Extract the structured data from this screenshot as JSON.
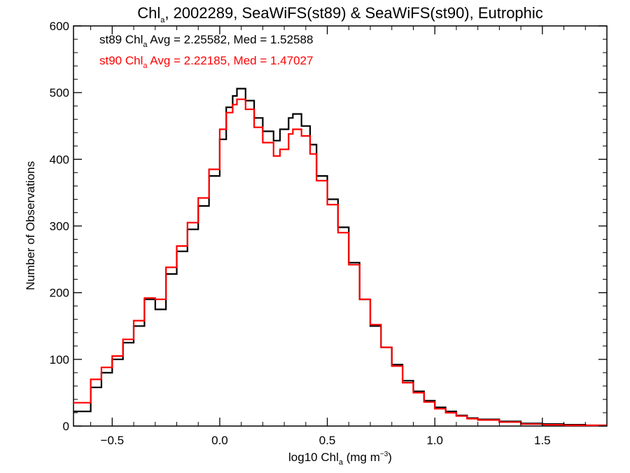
{
  "chart_data": {
    "type": "line",
    "step": true,
    "title": {
      "base": "Chl",
      "sub": "a",
      "rest": ", 2002289, SeaWiFS(st89) & SeaWiFS(st90), Eutrophic"
    },
    "xlabel": {
      "base": "log10 Chl",
      "sub": "a",
      "unit_pre": " (mg m",
      "sup": "−3",
      "unit_post": ")"
    },
    "ylabel": "Number of Observations",
    "xlim": [
      -0.68,
      1.8
    ],
    "ylim": [
      0,
      600
    ],
    "xticks": [
      -0.5,
      0.0,
      0.5,
      1.0,
      1.5
    ],
    "xtick_labels": [
      "−0.5",
      "0.0",
      "0.5",
      "1.0",
      "1.5"
    ],
    "yticks": [
      0,
      100,
      200,
      300,
      400,
      500,
      600
    ],
    "ytick_labels": [
      "0",
      "100",
      "200",
      "300",
      "400",
      "500",
      "600"
    ],
    "grid": false,
    "series": [
      {
        "name": "st89",
        "color": "#000000",
        "legend": {
          "pre": "st89 Chl",
          "sub": "a",
          "post": " Avg = 2.25582, Med = 1.52588"
        },
        "points": [
          [
            -0.68,
            22
          ],
          [
            -0.6,
            58
          ],
          [
            -0.55,
            80
          ],
          [
            -0.5,
            100
          ],
          [
            -0.45,
            125
          ],
          [
            -0.4,
            150
          ],
          [
            -0.35,
            190
          ],
          [
            -0.3,
            175
          ],
          [
            -0.25,
            228
          ],
          [
            -0.2,
            262
          ],
          [
            -0.15,
            295
          ],
          [
            -0.1,
            330
          ],
          [
            -0.05,
            375
          ],
          [
            0.0,
            430
          ],
          [
            0.03,
            478
          ],
          [
            0.06,
            495
          ],
          [
            0.08,
            506
          ],
          [
            0.12,
            488
          ],
          [
            0.16,
            462
          ],
          [
            0.2,
            442
          ],
          [
            0.25,
            428
          ],
          [
            0.28,
            445
          ],
          [
            0.32,
            462
          ],
          [
            0.34,
            468
          ],
          [
            0.38,
            450
          ],
          [
            0.42,
            422
          ],
          [
            0.45,
            375
          ],
          [
            0.5,
            340
          ],
          [
            0.55,
            298
          ],
          [
            0.6,
            245
          ],
          [
            0.65,
            190
          ],
          [
            0.7,
            150
          ],
          [
            0.75,
            118
          ],
          [
            0.8,
            92
          ],
          [
            0.85,
            68
          ],
          [
            0.9,
            52
          ],
          [
            0.95,
            38
          ],
          [
            1.0,
            28
          ],
          [
            1.05,
            22
          ],
          [
            1.1,
            16
          ],
          [
            1.15,
            12
          ],
          [
            1.2,
            10
          ],
          [
            1.3,
            7
          ],
          [
            1.4,
            4
          ],
          [
            1.5,
            3
          ],
          [
            1.6,
            2
          ],
          [
            1.7,
            1
          ],
          [
            1.8,
            1
          ]
        ]
      },
      {
        "name": "st90",
        "color": "#ff0000",
        "legend": {
          "pre": "st90 Chl",
          "sub": "a",
          "post": " Avg = 2.22185, Med = 1.47027"
        },
        "points": [
          [
            -0.68,
            35
          ],
          [
            -0.6,
            70
          ],
          [
            -0.55,
            88
          ],
          [
            -0.5,
            105
          ],
          [
            -0.45,
            130
          ],
          [
            -0.4,
            158
          ],
          [
            -0.35,
            192
          ],
          [
            -0.3,
            190
          ],
          [
            -0.25,
            238
          ],
          [
            -0.2,
            270
          ],
          [
            -0.15,
            305
          ],
          [
            -0.1,
            342
          ],
          [
            -0.05,
            385
          ],
          [
            0.0,
            445
          ],
          [
            0.03,
            470
          ],
          [
            0.06,
            482
          ],
          [
            0.08,
            490
          ],
          [
            0.12,
            475
          ],
          [
            0.16,
            448
          ],
          [
            0.2,
            425
          ],
          [
            0.25,
            405
          ],
          [
            0.28,
            415
          ],
          [
            0.32,
            438
          ],
          [
            0.34,
            445
          ],
          [
            0.38,
            435
          ],
          [
            0.42,
            408
          ],
          [
            0.45,
            368
          ],
          [
            0.5,
            332
          ],
          [
            0.55,
            290
          ],
          [
            0.6,
            242
          ],
          [
            0.65,
            190
          ],
          [
            0.7,
            152
          ],
          [
            0.75,
            118
          ],
          [
            0.8,
            90
          ],
          [
            0.85,
            65
          ],
          [
            0.9,
            50
          ],
          [
            0.95,
            36
          ],
          [
            1.0,
            26
          ],
          [
            1.05,
            20
          ],
          [
            1.1,
            15
          ],
          [
            1.15,
            11
          ],
          [
            1.2,
            9
          ],
          [
            1.3,
            6
          ],
          [
            1.4,
            3
          ],
          [
            1.5,
            2
          ],
          [
            1.6,
            1
          ],
          [
            1.7,
            1
          ],
          [
            1.8,
            1
          ]
        ]
      }
    ]
  }
}
